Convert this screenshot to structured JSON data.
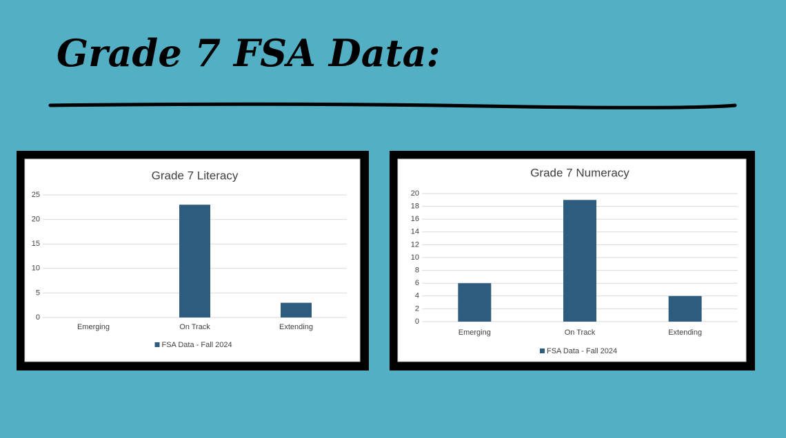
{
  "title": "Grade 7 FSA Data:",
  "chart_data": [
    {
      "type": "bar",
      "title": "Grade 7 Literacy",
      "categories": [
        "Emerging",
        "On Track",
        "Extending"
      ],
      "series": [
        {
          "name": "FSA Data - Fall 2024",
          "color": "#2e5c7e",
          "values": [
            0,
            23,
            3
          ]
        }
      ],
      "ylim": [
        0,
        25
      ],
      "yticks": [
        0,
        5,
        10,
        15,
        20,
        25
      ],
      "grid": true,
      "legend": "bottom"
    },
    {
      "type": "bar",
      "title": "Grade 7 Numeracy",
      "categories": [
        "Emerging",
        "On Track",
        "Extending"
      ],
      "series": [
        {
          "name": "FSA Data - Fall 2024",
          "color": "#2e5c7e",
          "values": [
            6,
            19,
            4
          ]
        }
      ],
      "ylim": [
        0,
        20
      ],
      "yticks": [
        0,
        2,
        4,
        6,
        8,
        10,
        12,
        14,
        16,
        18,
        20
      ],
      "grid": true,
      "legend": "bottom"
    }
  ]
}
